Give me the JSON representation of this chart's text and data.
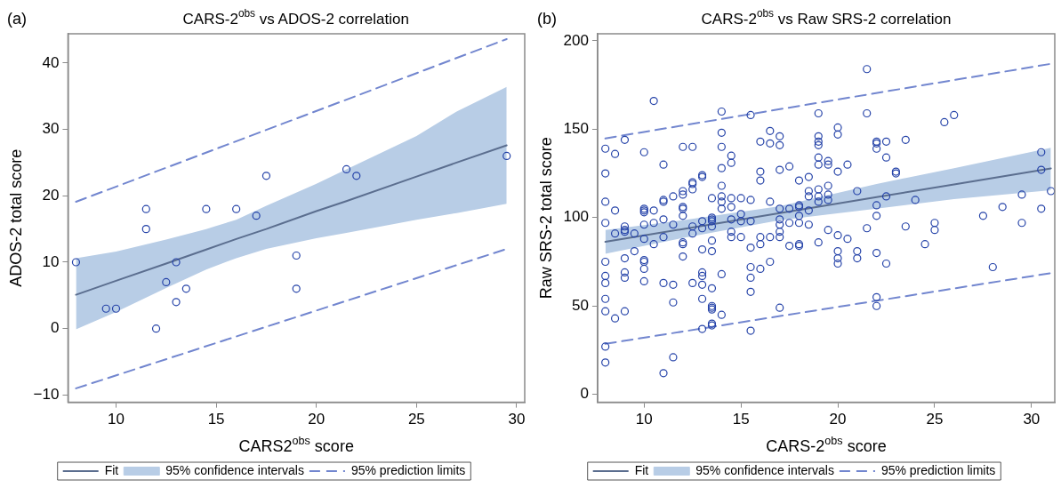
{
  "chart_data": [
    {
      "type": "scatter",
      "title": "CARS-2$^{obs}$ vs ADOS-2 correlation",
      "xlabel": "CARS2$^{obs}$ score",
      "ylabel": "ADOS-2 total score",
      "annotations": [
        "(a)"
      ],
      "xlim": [
        7.6,
        30.4
      ],
      "xticks": [
        10,
        15,
        20,
        25,
        30
      ],
      "ylim": [
        -11.1,
        44.4
      ],
      "yticks": [
        {
          "value": -10,
          "label": "−10"
        },
        0,
        10,
        20,
        30,
        40
      ],
      "grid": false,
      "legend": "bottom",
      "series": [
        {
          "type": "scatter",
          "color": "#2442a8",
          "marker": "circle",
          "x": [
            8,
            9.5,
            10,
            11.5,
            11.5,
            12,
            12.5,
            13,
            13,
            13.5,
            14.5,
            16,
            17,
            17.5,
            19,
            19,
            21.5,
            22,
            29.5
          ],
          "values": [
            10,
            3,
            3,
            18,
            15,
            0,
            7,
            10,
            4,
            6,
            18,
            18,
            17,
            23,
            11,
            6,
            24,
            23,
            26
          ]
        },
        {
          "type": "line",
          "name": "Fit",
          "color": "#5b6e8f",
          "marker": "none",
          "line_style": "solid",
          "x": [
            8,
            10,
            12.5,
            14.5,
            16,
            17.5,
            20,
            21.5,
            25,
            27,
            29.5
          ],
          "values": [
            5.1,
            7.2,
            9.8,
            11.9,
            13.5,
            15.0,
            17.7,
            19.2,
            22.9,
            25.0,
            27.6
          ],
          "upper": [
            10.6,
            11.6,
            13.4,
            15,
            16.4,
            18.5,
            21.8,
            24,
            29,
            32.7,
            36.4
          ],
          "lower": [
            -0.1,
            2.5,
            6.1,
            8.9,
            10.6,
            12,
            13.6,
            14.4,
            16.4,
            17.4,
            18.8
          ]
        },
        {
          "type": "area",
          "name": "95% confidence intervals",
          "color": "#b8cde6"
        },
        {
          "type": "line",
          "name": "95% prediction limits",
          "color": "#7286cf",
          "marker": "none",
          "line_style": "dashed",
          "x": [
            8,
            29.5
          ],
          "values": [
            19.1,
            43.6
          ]
        },
        {
          "type": "line",
          "color": "#7286cf",
          "marker": "none",
          "line_style": "dashed",
          "x": [
            8,
            29.5
          ],
          "values": [
            -9,
            12
          ]
        }
      ]
    },
    {
      "type": "scatter",
      "title": "CARS-2$^{obs}$ vs Raw SRS-2 correlation",
      "xlabel": "CARS-2$^{obs}$ score",
      "ylabel": "Raw SRS-2 total score",
      "annotations": [
        "(b)"
      ],
      "xlim": [
        7.6,
        31.2
      ],
      "xticks": [
        10,
        15,
        20,
        25,
        30
      ],
      "ylim": [
        -4.5,
        204
      ],
      "yticks": [
        0,
        50,
        100,
        150,
        200
      ],
      "grid": false,
      "legend": "bottom",
      "series": [
        {
          "type": "scatter",
          "color": "#2442a8",
          "marker": "circle",
          "x": [
            8,
            8,
            8,
            8,
            8,
            8,
            8,
            8,
            8,
            8,
            8,
            8.5,
            8.5,
            8.5,
            8.5,
            9,
            9,
            9,
            9,
            9,
            9,
            9,
            9,
            9.5,
            9.5,
            10,
            10,
            10,
            10,
            10,
            10,
            10,
            10,
            10,
            10,
            10.5,
            10.5,
            10.5,
            10.5,
            11,
            11,
            11,
            11,
            11,
            11,
            11,
            11.5,
            11.5,
            11.5,
            11.5,
            11.5,
            12,
            12,
            12,
            12,
            12,
            12,
            12,
            12,
            12,
            12.5,
            12.5,
            12.5,
            12.5,
            12.5,
            12.5,
            12.5,
            13,
            13,
            13,
            13,
            13,
            13,
            13,
            13,
            13,
            13,
            13.5,
            13.5,
            13.5,
            13.5,
            13.5,
            13.5,
            13.5,
            13.5,
            13.5,
            13.5,
            13.5,
            13.5,
            13.5,
            14,
            14,
            14,
            14,
            14,
            14,
            14,
            14,
            14,
            14,
            14.5,
            14.5,
            14.5,
            14.5,
            14.5,
            14.5,
            14.5,
            15,
            15,
            15,
            15,
            15.5,
            15.5,
            15.5,
            15.5,
            15.5,
            15.5,
            15.5,
            15.5,
            16,
            16,
            16,
            16,
            16,
            16,
            16.5,
            16.5,
            16.5,
            16.5,
            16.5,
            17,
            17,
            17,
            17,
            17,
            17,
            17,
            17,
            17,
            17.5,
            17.5,
            17.5,
            17.5,
            18,
            18,
            18,
            18,
            18,
            18,
            18,
            18.5,
            18.5,
            18.5,
            18.5,
            18.5,
            19,
            19,
            19,
            19,
            19,
            19,
            19,
            19,
            19,
            19,
            19.5,
            19.5,
            19.5,
            19.5,
            19.5,
            19.5,
            20,
            20,
            20,
            20,
            20,
            20,
            20,
            20.5,
            20.5,
            21,
            21,
            21,
            21.5,
            21.5,
            21.5,
            22,
            22,
            22,
            22,
            22,
            22,
            22,
            22,
            22.5,
            22.5,
            22.5,
            22.5,
            23,
            23,
            23.5,
            23.5,
            24,
            24.5,
            25,
            25,
            25.5,
            26,
            27.5,
            28,
            28.5,
            29.5,
            29.5,
            30.5,
            30.5,
            30.5,
            31
          ],
          "values": [
            139,
            125,
            109,
            97,
            75,
            67,
            63,
            54,
            47,
            27,
            18,
            136,
            104,
            91,
            43,
            144,
            95,
            93,
            92,
            77,
            69,
            66,
            47,
            91,
            81,
            137,
            105,
            104,
            103,
            96,
            88,
            76,
            75,
            71,
            64,
            166,
            104,
            97,
            85,
            130,
            110,
            109,
            99,
            89,
            63,
            12,
            112,
            96,
            62,
            52,
            21,
            140,
            115,
            113,
            106,
            105,
            101,
            86,
            85,
            78,
            140,
            120,
            119,
            116,
            95,
            91,
            63,
            124,
            123,
            98,
            94,
            82,
            69,
            67,
            62,
            54,
            37,
            111,
            100,
            99,
            98,
            95,
            87,
            81,
            60,
            50,
            49,
            48,
            40,
            39,
            160,
            148,
            140,
            128,
            118,
            112,
            109,
            105,
            68,
            45,
            135,
            131,
            111,
            106,
            99,
            92,
            89,
            111,
            102,
            98,
            89,
            158,
            110,
            98,
            83,
            72,
            66,
            58,
            36,
            143,
            126,
            121,
            89,
            85,
            71,
            149,
            142,
            109,
            89,
            75,
            146,
            141,
            127,
            105,
            99,
            96,
            92,
            89,
            49,
            129,
            105,
            97,
            84,
            121,
            107,
            106,
            101,
            97,
            85,
            84,
            123,
            115,
            112,
            104,
            96,
            159,
            146,
            143,
            141,
            134,
            130,
            116,
            112,
            109,
            86,
            132,
            130,
            118,
            113,
            110,
            93,
            151,
            147,
            126,
            90,
            81,
            77,
            74,
            130,
            88,
            115,
            81,
            77,
            184,
            159,
            94,
            143,
            142,
            139,
            107,
            101,
            80,
            55,
            50,
            143,
            134,
            112,
            74,
            126,
            125,
            144,
            95,
            110,
            85,
            97,
            93,
            154,
            158,
            101,
            72,
            106,
            113,
            97,
            137,
            127,
            105,
            115
          ]
        },
        {
          "type": "line",
          "name": "Fit",
          "color": "#5b6e8f",
          "marker": "none",
          "line_style": "solid",
          "x": [
            8,
            12,
            17,
            22,
            26,
            31
          ],
          "values": [
            86.3,
            93.5,
            102.5,
            111.6,
            118.8,
            127.8
          ],
          "upper": [
            93,
            98.5,
            106.5,
            119,
            128,
            139.5
          ],
          "lower": [
            79.5,
            88.5,
            98.5,
            105,
            110.5,
            115.5
          ]
        },
        {
          "type": "area",
          "name": "95% confidence intervals",
          "color": "#b8cde6"
        },
        {
          "type": "line",
          "name": "95% prediction limits",
          "color": "#7286cf",
          "marker": "none",
          "line_style": "dashed",
          "x": [
            8,
            31
          ],
          "values": [
            144.8,
            187
          ]
        },
        {
          "type": "line",
          "color": "#7286cf",
          "marker": "none",
          "line_style": "dashed",
          "x": [
            8,
            31
          ],
          "values": [
            28.6,
            68.6
          ]
        }
      ]
    }
  ]
}
